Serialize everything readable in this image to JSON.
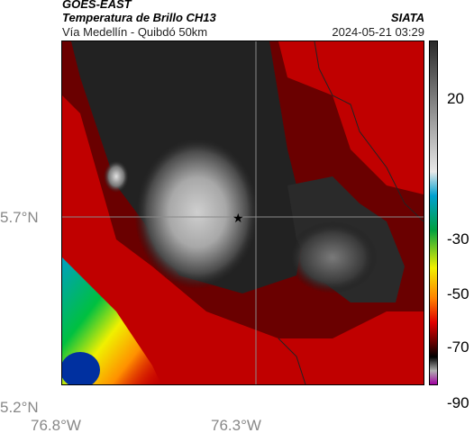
{
  "header": {
    "satellite": "GOES-EAST",
    "product": "Temperatura de Brillo CH13",
    "organization": "SIATA",
    "route": "Vía Medellín - Quibdó 50km",
    "timestamp": "2024-05-21 03:29"
  },
  "axes": {
    "lat_labels": [
      "5.7°N",
      "5.2°N"
    ],
    "lon_labels": [
      "76.8°W",
      "76.3°W"
    ]
  },
  "colorbar": {
    "ticks": [
      "20",
      "-30",
      "-50",
      "-70",
      "-90"
    ],
    "stops": [
      "#2a2a2a",
      "#e8e8e8",
      "#00a0d0",
      "#00a040",
      "#f0f000",
      "#ff8000",
      "#e00000",
      "#600000",
      "#000000",
      "#b0b0b0",
      "#a000a0"
    ]
  },
  "map": {
    "marker_icon": "star-icon"
  }
}
